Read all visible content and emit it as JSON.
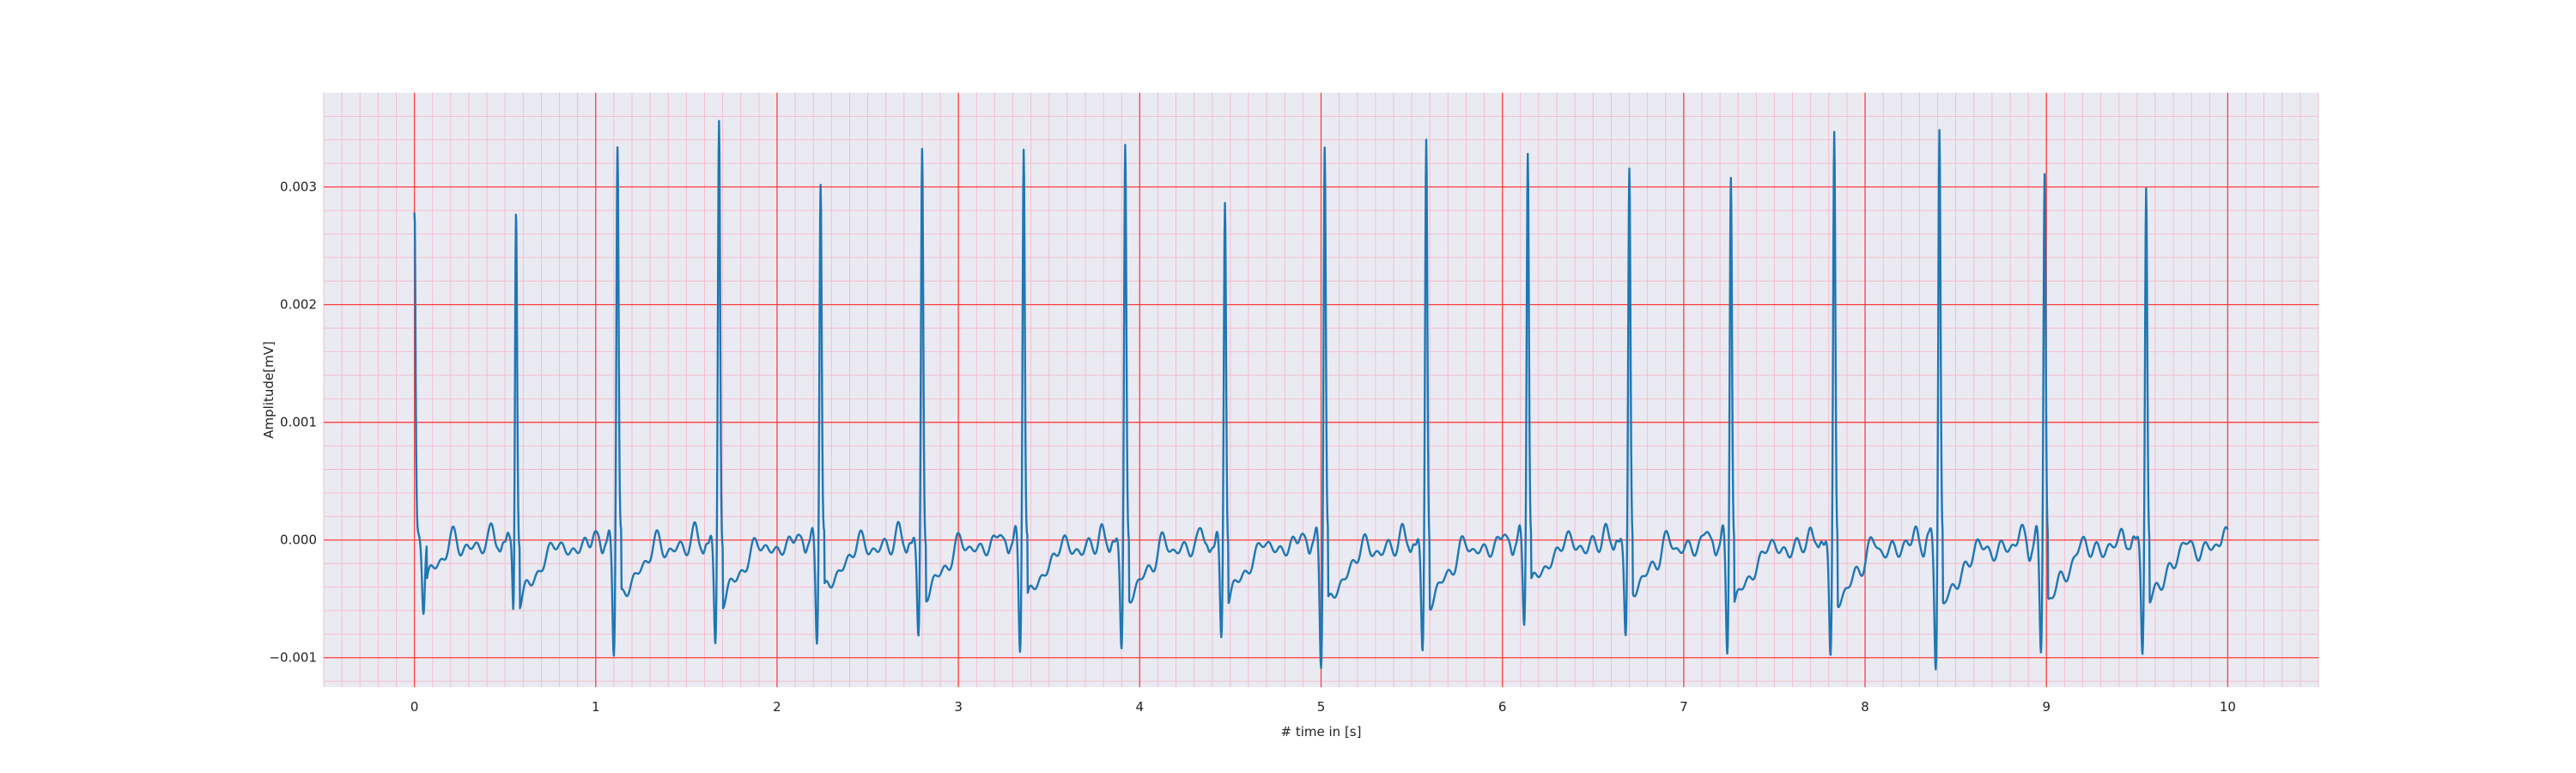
{
  "chart_data": {
    "type": "line",
    "title": "",
    "xlabel": "# time in [s]",
    "ylabel": "Amplitude[mV]",
    "xlim": [
      -0.5,
      10.5
    ],
    "ylim": [
      -0.00125,
      0.0038
    ],
    "grid": true,
    "minor_grid": true,
    "x_ticks": [
      0,
      1,
      2,
      3,
      4,
      5,
      6,
      7,
      8,
      9,
      10
    ],
    "x_tick_labels": [
      "0",
      "1",
      "2",
      "3",
      "4",
      "5",
      "6",
      "7",
      "8",
      "9",
      "10"
    ],
    "y_ticks": [
      -0.001,
      0.0,
      0.001,
      0.002,
      0.003
    ],
    "y_tick_labels": [
      "−0.001",
      "0.000",
      "0.001",
      "0.002",
      "0.003"
    ],
    "colors": {
      "line": "#1f77b4",
      "plot_background": "#eaeaf2",
      "major_grid": "#ff4040",
      "minor_grid": "#f5b9c8"
    },
    "series": [
      {
        "r_peaks": [
          [
            0.0,
            0.00275
          ],
          [
            0.56,
            0.00318
          ],
          [
            1.12,
            0.00338
          ],
          [
            1.68,
            0.00358
          ],
          [
            2.24,
            0.0031
          ],
          [
            2.8,
            0.0033
          ],
          [
            3.36,
            0.00343
          ],
          [
            3.92,
            0.00332
          ],
          [
            4.47,
            0.00295
          ],
          [
            5.02,
            0.0034
          ],
          [
            5.58,
            0.00337
          ],
          [
            6.14,
            0.00337
          ],
          [
            6.7,
            0.0031
          ],
          [
            7.26,
            0.00318
          ],
          [
            7.83,
            0.00343
          ],
          [
            8.41,
            0.0035
          ],
          [
            8.99,
            0.00315
          ],
          [
            9.55,
            0.003
          ]
        ],
        "s_troughs": [
          [
            0.05,
            -0.00055
          ],
          [
            0.55,
            -0.00095
          ],
          [
            1.1,
            -0.00092
          ],
          [
            1.66,
            -0.00093
          ],
          [
            2.22,
            -0.00082
          ],
          [
            2.78,
            -0.00085
          ],
          [
            3.34,
            -0.00092
          ],
          [
            3.9,
            -0.00092
          ],
          [
            4.45,
            -0.00088
          ],
          [
            5.0,
            -0.00102
          ],
          [
            5.56,
            -0.00098
          ],
          [
            6.12,
            -0.00068
          ],
          [
            6.68,
            -0.00082
          ],
          [
            7.24,
            -0.00097
          ],
          [
            7.81,
            -0.001
          ],
          [
            8.39,
            -0.00103
          ],
          [
            8.97,
            -0.00095
          ],
          [
            9.53,
            -0.00095
          ]
        ]
      }
    ]
  }
}
